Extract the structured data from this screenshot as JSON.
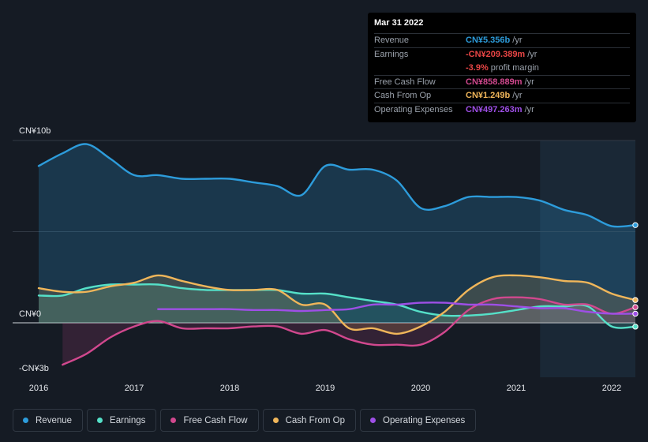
{
  "tooltip": {
    "date": "Mar 31 2022",
    "rows": [
      {
        "label": "Revenue",
        "value": "CN¥5.356b",
        "unit": "/yr",
        "color": "#2d9cdb"
      },
      {
        "label": "Earnings",
        "value": "-CN¥209.389m",
        "unit": "/yr",
        "color": "#e84545"
      },
      {
        "label": "",
        "value": "-3.9%",
        "unit": "profit margin",
        "color": "#e84545"
      },
      {
        "label": "Free Cash Flow",
        "value": "CN¥858.889m",
        "unit": "/yr",
        "color": "#d1488e"
      },
      {
        "label": "Cash From Op",
        "value": "CN¥1.249b",
        "unit": "/yr",
        "color": "#f0b65a"
      },
      {
        "label": "Operating Expenses",
        "value": "CN¥497.263m",
        "unit": "/yr",
        "color": "#9e4fe6"
      }
    ]
  },
  "chart_data": {
    "type": "line",
    "y_tick_labels": [
      "CN¥10b",
      "CN¥0",
      "-CN¥3b"
    ],
    "x_tick_labels": [
      "2016",
      "2017",
      "2018",
      "2019",
      "2020",
      "2021",
      "2022"
    ],
    "ylim": [
      -3,
      10
    ],
    "xlim": [
      2015.75,
      2022.25
    ],
    "unit": "CN¥ billions",
    "grid": true,
    "highlight_range": [
      2021.25,
      2022.25
    ],
    "series": [
      {
        "name": "Revenue",
        "color": "#2d9cdb",
        "fill": true,
        "x": [
          2016.0,
          2016.25,
          2016.5,
          2016.75,
          2017.0,
          2017.25,
          2017.5,
          2017.75,
          2018.0,
          2018.25,
          2018.5,
          2018.75,
          2019.0,
          2019.25,
          2019.5,
          2019.75,
          2020.0,
          2020.25,
          2020.5,
          2020.75,
          2021.0,
          2021.25,
          2021.5,
          2021.75,
          2022.0,
          2022.25
        ],
        "values": [
          8.6,
          9.3,
          9.8,
          9.0,
          8.1,
          8.1,
          7.9,
          7.9,
          7.9,
          7.7,
          7.5,
          7.0,
          8.6,
          8.4,
          8.4,
          7.8,
          6.3,
          6.4,
          6.9,
          6.9,
          6.9,
          6.7,
          6.2,
          5.9,
          5.3,
          5.36
        ]
      },
      {
        "name": "Earnings",
        "color": "#55e0c8",
        "fill": true,
        "x": [
          2016.0,
          2016.25,
          2016.5,
          2016.75,
          2017.0,
          2017.25,
          2017.5,
          2017.75,
          2018.0,
          2018.25,
          2018.5,
          2018.75,
          2019.0,
          2019.25,
          2019.5,
          2019.75,
          2020.0,
          2020.25,
          2020.5,
          2020.75,
          2021.0,
          2021.25,
          2021.5,
          2021.75,
          2022.0,
          2022.25
        ],
        "values": [
          1.5,
          1.5,
          1.9,
          2.1,
          2.1,
          2.1,
          1.9,
          1.8,
          1.8,
          1.8,
          1.8,
          1.6,
          1.6,
          1.4,
          1.2,
          1.0,
          0.6,
          0.4,
          0.4,
          0.5,
          0.7,
          0.9,
          0.9,
          0.9,
          -0.2,
          -0.21
        ]
      },
      {
        "name": "Free Cash Flow",
        "color": "#d1488e",
        "fill": true,
        "x": [
          2016.25,
          2016.5,
          2016.75,
          2017.0,
          2017.25,
          2017.5,
          2017.75,
          2018.0,
          2018.25,
          2018.5,
          2018.75,
          2019.0,
          2019.25,
          2019.5,
          2019.75,
          2020.0,
          2020.25,
          2020.5,
          2020.75,
          2021.0,
          2021.25,
          2021.5,
          2021.75,
          2022.0,
          2022.25
        ],
        "values": [
          -2.3,
          -1.7,
          -0.8,
          -0.2,
          0.1,
          -0.3,
          -0.3,
          -0.3,
          -0.2,
          -0.2,
          -0.6,
          -0.4,
          -0.9,
          -1.2,
          -1.2,
          -1.2,
          -0.5,
          0.7,
          1.3,
          1.4,
          1.3,
          1.0,
          1.0,
          0.5,
          0.86
        ]
      },
      {
        "name": "Cash From Op",
        "color": "#f0b65a",
        "fill": true,
        "x": [
          2016.0,
          2016.25,
          2016.5,
          2016.75,
          2017.0,
          2017.25,
          2017.5,
          2017.75,
          2018.0,
          2018.25,
          2018.5,
          2018.75,
          2019.0,
          2019.25,
          2019.5,
          2019.75,
          2020.0,
          2020.25,
          2020.5,
          2020.75,
          2021.0,
          2021.25,
          2021.5,
          2021.75,
          2022.0,
          2022.25
        ],
        "values": [
          1.9,
          1.7,
          1.7,
          2.0,
          2.2,
          2.6,
          2.3,
          2.0,
          1.8,
          1.8,
          1.8,
          1.0,
          1.0,
          -0.3,
          -0.3,
          -0.6,
          -0.2,
          0.6,
          1.8,
          2.5,
          2.6,
          2.5,
          2.3,
          2.2,
          1.6,
          1.25
        ]
      },
      {
        "name": "Operating Expenses",
        "color": "#9e4fe6",
        "fill": false,
        "x": [
          2017.25,
          2017.5,
          2017.75,
          2018.0,
          2018.25,
          2018.5,
          2018.75,
          2019.0,
          2019.25,
          2019.5,
          2019.75,
          2020.0,
          2020.25,
          2020.5,
          2020.75,
          2021.0,
          2021.25,
          2021.5,
          2021.75,
          2022.0,
          2022.25
        ],
        "values": [
          0.75,
          0.75,
          0.75,
          0.75,
          0.7,
          0.7,
          0.65,
          0.7,
          0.75,
          1.0,
          1.0,
          1.1,
          1.1,
          1.0,
          1.0,
          0.9,
          0.8,
          0.8,
          0.6,
          0.5,
          0.5
        ]
      }
    ]
  },
  "legend": [
    {
      "label": "Revenue",
      "color": "#2d9cdb"
    },
    {
      "label": "Earnings",
      "color": "#55e0c8"
    },
    {
      "label": "Free Cash Flow",
      "color": "#d1488e"
    },
    {
      "label": "Cash From Op",
      "color": "#f0b65a"
    },
    {
      "label": "Operating Expenses",
      "color": "#9e4fe6"
    }
  ]
}
